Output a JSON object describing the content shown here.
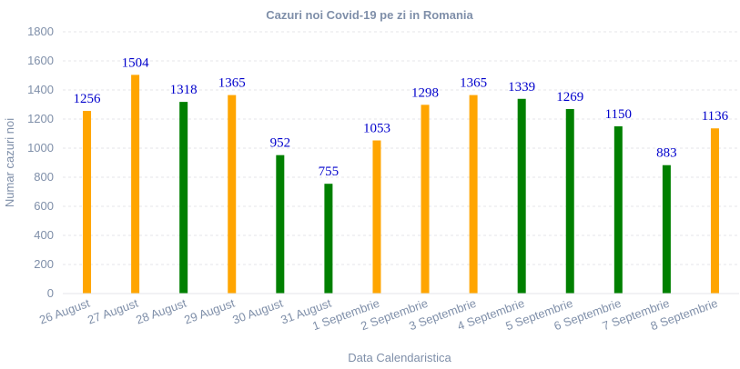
{
  "chart_data": {
    "type": "bar",
    "title": "Cazuri noi Covid-19 pe zi in Romania",
    "xlabel": "Data Calendaristica",
    "ylabel": "Numar cazuri noi",
    "ylim": [
      0,
      1800
    ],
    "yticks": [
      0,
      200,
      400,
      600,
      800,
      1000,
      1200,
      1400,
      1600,
      1800
    ],
    "grid": true,
    "categories": [
      "26 August",
      "27 August",
      "28 August",
      "29 August",
      "30 August",
      "31 August",
      "1 Septembrie",
      "2 Septembrie",
      "3 Septembrie",
      "4 Septembrie",
      "5 Septembrie",
      "6 Septembrie",
      "7 Septembrie",
      "8 Septembrie"
    ],
    "values": [
      1256,
      1504,
      1318,
      1365,
      952,
      755,
      1053,
      1298,
      1365,
      1339,
      1269,
      1150,
      883,
      1136
    ],
    "bar_colors": [
      "#ffa500",
      "#ffa500",
      "#008000",
      "#ffa500",
      "#008000",
      "#008000",
      "#ffa500",
      "#ffa500",
      "#ffa500",
      "#008000",
      "#008000",
      "#008000",
      "#008000",
      "#ffa500"
    ],
    "data_label_color": "#0000cc"
  }
}
